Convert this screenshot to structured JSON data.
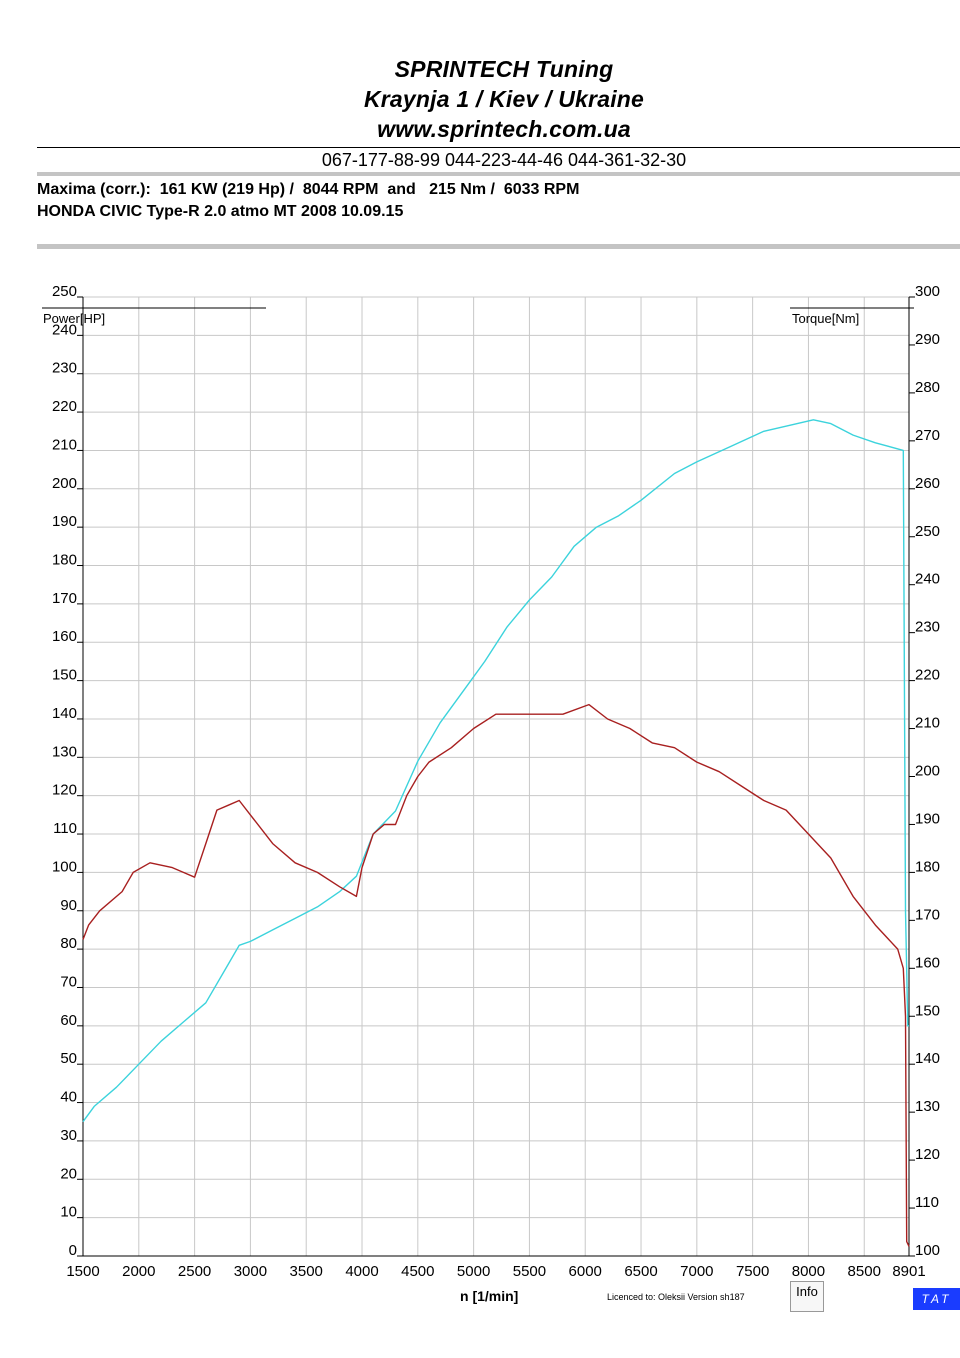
{
  "header": {
    "line1": "SPRINTECH Tuning",
    "line2": "Kraynja 1 / Kiev / Ukraine",
    "line3": "www.sprintech.com.ua",
    "phones": "067-177-88-99 044-223-44-46 044-361-32-30"
  },
  "info": {
    "maxima": "Maxima (corr.):  161 KW (219 Hp) /  8044 RPM  and   215 Nm /  6033 RPM",
    "vehicle": "HONDA CIVIC Type-R 2.0 atmo MT 2008 10.09.15"
  },
  "footer": {
    "unit": "n  [1/min]",
    "licence": "Licenced to: Oleksii   Version sh187",
    "info_button": "Info",
    "badge": "TAT"
  },
  "colors": {
    "power": "#3cd3dc",
    "torque": "#a82020",
    "grid": "#c8c8c8"
  },
  "chart_data": {
    "type": "line",
    "xlabel": "n  [1/min]",
    "xlim": [
      1500,
      8901
    ],
    "x_ticks": [
      "1500",
      "2000",
      "2500",
      "3000",
      "3500",
      "4000",
      "4500",
      "5000",
      "5500",
      "6000",
      "6500",
      "7000",
      "7500",
      "8000",
      "8500",
      "8901"
    ],
    "y_left": {
      "label": "Power[HP]",
      "range": [
        0,
        250
      ],
      "ticks": [
        "0",
        "10",
        "20",
        "30",
        "40",
        "50",
        "60",
        "70",
        "80",
        "90",
        "100",
        "110",
        "120",
        "130",
        "140",
        "150",
        "160",
        "170",
        "180",
        "190",
        "200",
        "210",
        "220",
        "230",
        "240",
        "250"
      ]
    },
    "y_right": {
      "label": "Torque[Nm]",
      "range": [
        100,
        300
      ],
      "ticks": [
        "100",
        "110",
        "120",
        "130",
        "140",
        "150",
        "160",
        "170",
        "180",
        "190",
        "200",
        "210",
        "220",
        "230",
        "240",
        "250",
        "260",
        "270",
        "280",
        "290",
        "300"
      ]
    },
    "series": [
      {
        "name": "Power[HP]",
        "axis": "left",
        "x": [
          1500,
          1600,
          1800,
          2000,
          2200,
          2400,
          2600,
          2800,
          2900,
          3000,
          3200,
          3400,
          3600,
          3800,
          3950,
          4100,
          4300,
          4500,
          4700,
          4900,
          5100,
          5300,
          5500,
          5700,
          5900,
          6100,
          6300,
          6500,
          6800,
          7000,
          7300,
          7600,
          7900,
          8044,
          8200,
          8400,
          8600,
          8850,
          8870,
          8890,
          8901
        ],
        "y": [
          35,
          39,
          44,
          50,
          56,
          61,
          66,
          76,
          81,
          82,
          85,
          88,
          91,
          95,
          99,
          110,
          116,
          129,
          139,
          147,
          155,
          164,
          171,
          177,
          185,
          190,
          193,
          197,
          204,
          207,
          211,
          215,
          217,
          218,
          217,
          214,
          212,
          210,
          90,
          60,
          60
        ]
      },
      {
        "name": "Torque[Nm]",
        "axis": "right",
        "x": [
          1500,
          1550,
          1650,
          1850,
          1950,
          2100,
          2300,
          2400,
          2500,
          2600,
          2700,
          2800,
          2900,
          3000,
          3200,
          3400,
          3600,
          3800,
          3950,
          4000,
          4100,
          4200,
          4300,
          4400,
          4500,
          4600,
          4800,
          5000,
          5200,
          5400,
          5600,
          5800,
          6033,
          6200,
          6400,
          6600,
          6800,
          7000,
          7200,
          7400,
          7600,
          7800,
          8000,
          8200,
          8400,
          8600,
          8800,
          8850,
          8870,
          8880,
          8901
        ],
        "y": [
          166,
          169,
          172,
          176,
          180,
          182,
          181,
          180,
          179,
          186,
          193,
          194,
          195,
          192,
          186,
          182,
          180,
          177,
          175,
          181,
          188,
          190,
          190,
          196,
          200,
          203,
          206,
          210,
          213,
          213,
          213,
          213,
          215,
          212,
          210,
          207,
          206,
          203,
          201,
          198,
          195,
          193,
          188,
          183,
          175,
          169,
          164,
          160,
          150,
          103,
          102
        ]
      }
    ],
    "grid": true,
    "legend": "none"
  }
}
